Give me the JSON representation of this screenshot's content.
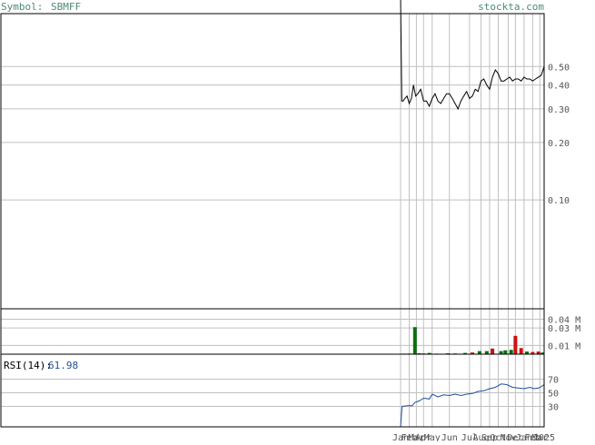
{
  "header": {
    "symbol_label": "Symbol:",
    "symbol": "SBMFF",
    "site": "stockta.com"
  },
  "rsi": {
    "label": "RSI(14):",
    "value": "61.98"
  },
  "colors": {
    "frame": "#000000",
    "grid": "#c0c0c0",
    "header_text": "#4a8a7a",
    "axis_text": "#555555",
    "price_line": "#000000",
    "rsi_line": "#1f4e9c",
    "rsi_value": "#1f4e9c",
    "volume_up": "#0a6e12",
    "volume_down": "#cc1111"
  },
  "chart_data": [
    {
      "type": "line",
      "name": "price",
      "scale": "log",
      "ylim": [
        0.03,
        1.0
      ],
      "yticks": [
        0.5,
        0.4,
        0.3,
        0.2,
        0.1
      ],
      "ytick_labels": [
        "0.50",
        "0.40",
        "0.30",
        "0.20",
        "0.10"
      ],
      "xlim": [
        0,
        1
      ],
      "points": [
        [
          0.0,
          5.0
        ],
        [
          0.008,
          0.33
        ],
        [
          0.018,
          0.33
        ],
        [
          0.03,
          0.34
        ],
        [
          0.045,
          0.35
        ],
        [
          0.06,
          0.32
        ],
        [
          0.075,
          0.34
        ],
        [
          0.09,
          0.4
        ],
        [
          0.105,
          0.35
        ],
        [
          0.12,
          0.36
        ],
        [
          0.14,
          0.38
        ],
        [
          0.16,
          0.33
        ],
        [
          0.18,
          0.33
        ],
        [
          0.2,
          0.31
        ],
        [
          0.22,
          0.34
        ],
        [
          0.24,
          0.36
        ],
        [
          0.26,
          0.33
        ],
        [
          0.28,
          0.32
        ],
        [
          0.3,
          0.34
        ],
        [
          0.32,
          0.36
        ],
        [
          0.34,
          0.36
        ],
        [
          0.36,
          0.34
        ],
        [
          0.38,
          0.32
        ],
        [
          0.4,
          0.3
        ],
        [
          0.42,
          0.33
        ],
        [
          0.44,
          0.35
        ],
        [
          0.46,
          0.37
        ],
        [
          0.48,
          0.34
        ],
        [
          0.5,
          0.35
        ],
        [
          0.52,
          0.38
        ],
        [
          0.54,
          0.37
        ],
        [
          0.56,
          0.42
        ],
        [
          0.58,
          0.43
        ],
        [
          0.6,
          0.4
        ],
        [
          0.62,
          0.38
        ],
        [
          0.64,
          0.44
        ],
        [
          0.66,
          0.48
        ],
        [
          0.68,
          0.46
        ],
        [
          0.7,
          0.42
        ],
        [
          0.72,
          0.42
        ],
        [
          0.74,
          0.43
        ],
        [
          0.76,
          0.44
        ],
        [
          0.78,
          0.42
        ],
        [
          0.8,
          0.43
        ],
        [
          0.82,
          0.43
        ],
        [
          0.84,
          0.42
        ],
        [
          0.86,
          0.44
        ],
        [
          0.88,
          0.43
        ],
        [
          0.9,
          0.43
        ],
        [
          0.92,
          0.42
        ],
        [
          0.94,
          0.43
        ],
        [
          0.96,
          0.44
        ],
        [
          0.98,
          0.45
        ],
        [
          1.0,
          0.5
        ]
      ]
    },
    {
      "type": "bar",
      "name": "volume",
      "unit": "M",
      "ylim": [
        0,
        0.052
      ],
      "yticks": [
        0.04,
        0.03,
        0.01
      ],
      "ytick_labels": [
        "0.04 M",
        "0.03 M",
        "0.01 M"
      ],
      "xlim": [
        0,
        1
      ],
      "bars": [
        {
          "x": 0.02,
          "value": 0.0006,
          "dir": "up"
        },
        {
          "x": 0.06,
          "value": 0.0007,
          "dir": "up"
        },
        {
          "x": 0.1,
          "value": 0.031,
          "dir": "up"
        },
        {
          "x": 0.13,
          "value": 0.001,
          "dir": "down"
        },
        {
          "x": 0.16,
          "value": 0.0008,
          "dir": "up"
        },
        {
          "x": 0.2,
          "value": 0.0015,
          "dir": "up"
        },
        {
          "x": 0.25,
          "value": 0.0006,
          "dir": "up"
        },
        {
          "x": 0.33,
          "value": 0.001,
          "dir": "up"
        },
        {
          "x": 0.38,
          "value": 0.0008,
          "dir": "down"
        },
        {
          "x": 0.45,
          "value": 0.0015,
          "dir": "up"
        },
        {
          "x": 0.5,
          "value": 0.002,
          "dir": "down"
        },
        {
          "x": 0.55,
          "value": 0.0035,
          "dir": "up"
        },
        {
          "x": 0.6,
          "value": 0.0035,
          "dir": "up"
        },
        {
          "x": 0.64,
          "value": 0.0065,
          "dir": "down"
        },
        {
          "x": 0.7,
          "value": 0.0035,
          "dir": "up"
        },
        {
          "x": 0.73,
          "value": 0.0045,
          "dir": "up"
        },
        {
          "x": 0.77,
          "value": 0.005,
          "dir": "up"
        },
        {
          "x": 0.8,
          "value": 0.021,
          "dir": "down"
        },
        {
          "x": 0.84,
          "value": 0.007,
          "dir": "down"
        },
        {
          "x": 0.88,
          "value": 0.003,
          "dir": "up"
        },
        {
          "x": 0.92,
          "value": 0.0025,
          "dir": "down"
        },
        {
          "x": 0.96,
          "value": 0.003,
          "dir": "down"
        },
        {
          "x": 0.99,
          "value": 0.002,
          "dir": "up"
        }
      ]
    },
    {
      "type": "line",
      "name": "rsi",
      "ylim": [
        0,
        100
      ],
      "yticks": [
        70,
        50,
        30
      ],
      "ytick_labels": [
        "70",
        "50",
        "30"
      ],
      "xlim": [
        0,
        1
      ],
      "points": [
        [
          0.0,
          0
        ],
        [
          0.01,
          30
        ],
        [
          0.05,
          31
        ],
        [
          0.08,
          31
        ],
        [
          0.1,
          36
        ],
        [
          0.13,
          38
        ],
        [
          0.16,
          42
        ],
        [
          0.2,
          41
        ],
        [
          0.22,
          48
        ],
        [
          0.26,
          44
        ],
        [
          0.3,
          47
        ],
        [
          0.34,
          46
        ],
        [
          0.38,
          48
        ],
        [
          0.42,
          46
        ],
        [
          0.46,
          48
        ],
        [
          0.5,
          49
        ],
        [
          0.54,
          52
        ],
        [
          0.58,
          53
        ],
        [
          0.62,
          56
        ],
        [
          0.66,
          58
        ],
        [
          0.7,
          63
        ],
        [
          0.74,
          62
        ],
        [
          0.78,
          58
        ],
        [
          0.82,
          57
        ],
        [
          0.86,
          56
        ],
        [
          0.9,
          58
        ],
        [
          0.93,
          56
        ],
        [
          0.96,
          57
        ],
        [
          0.98,
          59
        ],
        [
          1.0,
          62
        ]
      ]
    }
  ],
  "x_axis": {
    "tick_labels": [
      "Jan",
      "Feb",
      "Mar",
      "Apr",
      "May",
      "Jun",
      "Jul",
      "Aug",
      "Sep",
      "Oct",
      "Nov",
      "Dec",
      "Jan",
      "Feb",
      "Mar",
      "2025"
    ],
    "tick_positions": [
      0.0,
      0.06,
      0.11,
      0.16,
      0.22,
      0.34,
      0.48,
      0.56,
      0.62,
      0.68,
      0.75,
      0.8,
      0.86,
      0.92,
      0.97,
      1.0
    ]
  }
}
